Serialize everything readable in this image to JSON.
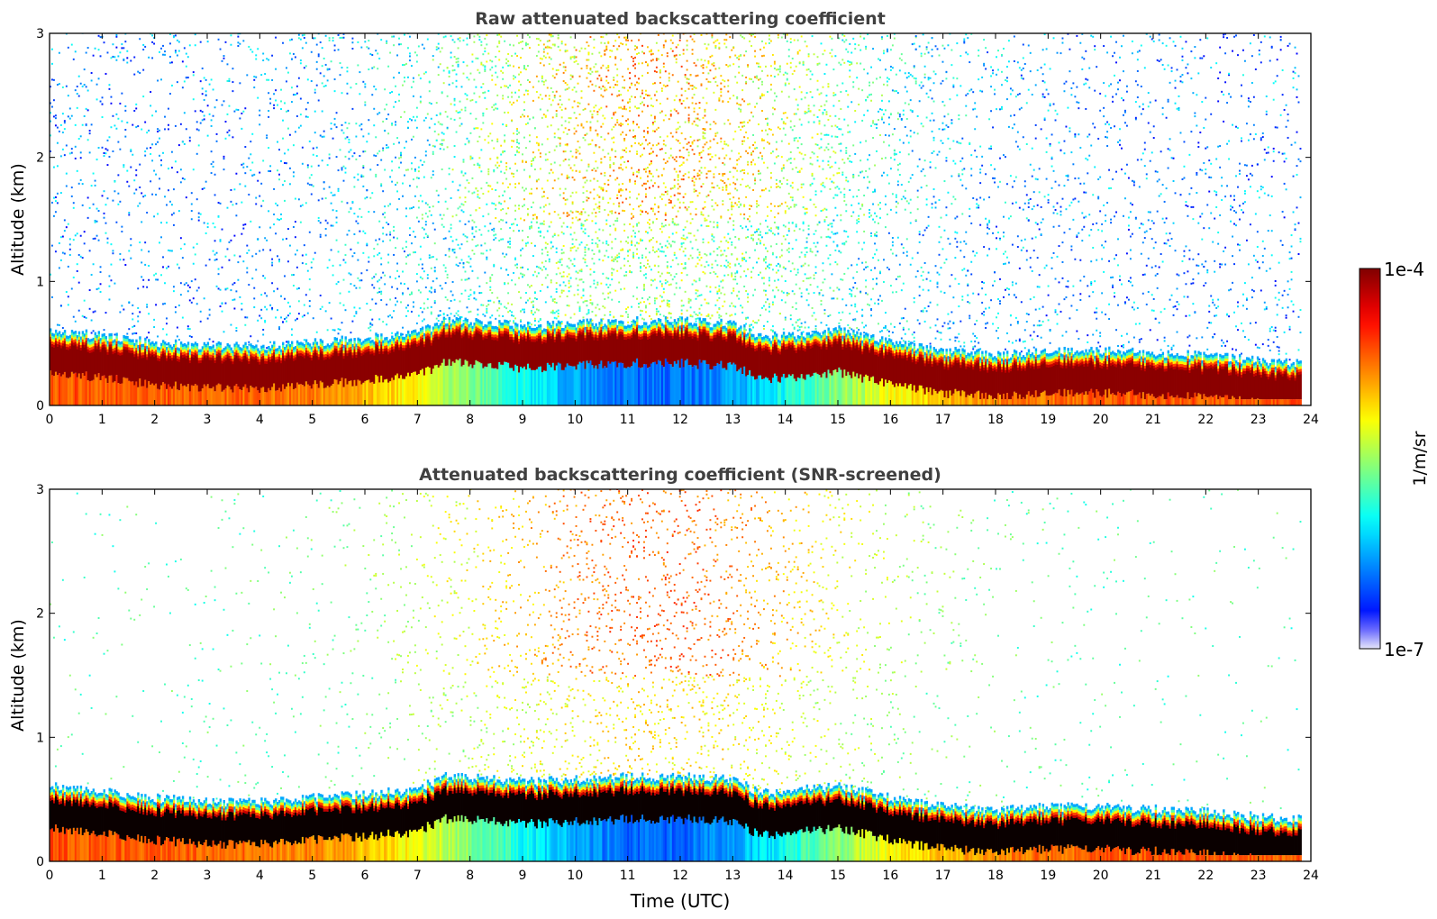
{
  "figure": {
    "colorbar": {
      "label": "1/m/sr",
      "max_label": "1e-4",
      "min_label": "1e-7",
      "vmin": 1e-07,
      "vmax": 0.0001,
      "scale": "log",
      "colormap": "jet",
      "colormap_stops": [
        "#e6e6fa",
        "#0000ff",
        "#00ffff",
        "#ffff00",
        "#ff0000",
        "#800000"
      ]
    }
  },
  "chart_data": [
    {
      "type": "heatmap",
      "title": "Raw attenuated backscattering coefficient",
      "xlabel": "",
      "ylabel": "Altitude (km)",
      "xlim": [
        0,
        24
      ],
      "ylim": [
        0,
        3
      ],
      "xticks": [
        "0",
        "1",
        "2",
        "3",
        "4",
        "5",
        "6",
        "7",
        "8",
        "9",
        "10",
        "11",
        "12",
        "13",
        "14",
        "15",
        "16",
        "17",
        "18",
        "19",
        "20",
        "21",
        "22",
        "23",
        "24"
      ],
      "yticks": [
        "0",
        "1",
        "2",
        "3"
      ],
      "grid": false,
      "screened": false,
      "boundary_layer_top_km": {
        "x": [
          0,
          1,
          2,
          3,
          4,
          5,
          6,
          7,
          7.5,
          8,
          9,
          10,
          11,
          12,
          13,
          13.5,
          14,
          15,
          16,
          17,
          18,
          19,
          20,
          21,
          22,
          23,
          23.8
        ],
        "y": [
          0.55,
          0.5,
          0.45,
          0.42,
          0.42,
          0.45,
          0.48,
          0.52,
          0.62,
          0.62,
          0.58,
          0.6,
          0.62,
          0.62,
          0.6,
          0.5,
          0.5,
          0.55,
          0.45,
          0.38,
          0.35,
          0.38,
          0.38,
          0.36,
          0.34,
          0.3,
          0.28
        ]
      }
    },
    {
      "type": "heatmap",
      "title": "Attenuated backscattering coefficient (SNR-screened)",
      "xlabel": "Time (UTC)",
      "ylabel": "Altitude (km)",
      "xlim": [
        0,
        24
      ],
      "ylim": [
        0,
        3
      ],
      "xticks": [
        "0",
        "1",
        "2",
        "3",
        "4",
        "5",
        "6",
        "7",
        "8",
        "9",
        "10",
        "11",
        "12",
        "13",
        "14",
        "15",
        "16",
        "17",
        "18",
        "19",
        "20",
        "21",
        "22",
        "23",
        "24"
      ],
      "yticks": [
        "0",
        "1",
        "2",
        "3"
      ],
      "grid": false,
      "screened": true,
      "boundary_layer_top_km": {
        "x": [
          0,
          1,
          2,
          3,
          4,
          5,
          6,
          7,
          7.5,
          8,
          9,
          10,
          11,
          12,
          13,
          13.5,
          14,
          15,
          16,
          17,
          18,
          19,
          20,
          21,
          22,
          23,
          23.8
        ],
        "y": [
          0.55,
          0.5,
          0.45,
          0.42,
          0.42,
          0.45,
          0.48,
          0.52,
          0.62,
          0.62,
          0.58,
          0.6,
          0.62,
          0.62,
          0.6,
          0.5,
          0.5,
          0.55,
          0.45,
          0.38,
          0.35,
          0.38,
          0.38,
          0.36,
          0.34,
          0.3,
          0.28
        ]
      }
    }
  ]
}
